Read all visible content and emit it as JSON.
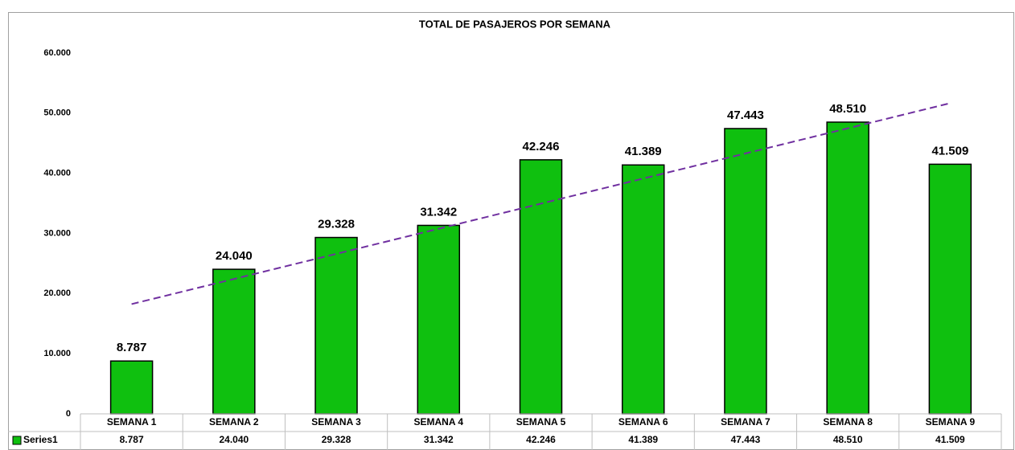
{
  "chart_data": {
    "type": "bar",
    "title": "TOTAL DE PASAJEROS POR SEMANA",
    "categories": [
      "SEMANA 1",
      "SEMANA 2",
      "SEMANA 3",
      "SEMANA 4",
      "SEMANA 5",
      "SEMANA 6",
      "SEMANA 7",
      "SEMANA 8",
      "SEMANA 9"
    ],
    "series": [
      {
        "name": "Series1",
        "color": "#0fc00f",
        "values": [
          8787,
          24040,
          29328,
          31342,
          42246,
          41389,
          47443,
          48510,
          41509
        ],
        "value_labels": [
          "8.787",
          "24.040",
          "29.328",
          "31.342",
          "42.246",
          "41.389",
          "47.443",
          "48.510",
          "41.509"
        ]
      }
    ],
    "ylim": [
      0,
      60000
    ],
    "yticks": [
      0,
      {
        "value": 10000,
        "label": "10.000"
      },
      {
        "value": 20000,
        "label": "20.000"
      },
      {
        "value": 30000,
        "label": "30.000"
      },
      {
        "value": 40000,
        "label": "40.000"
      },
      {
        "value": 50000,
        "label": "50.000"
      },
      {
        "value": 60000,
        "label": "60.000"
      }
    ],
    "grid": false,
    "trendline": {
      "type": "linear",
      "color": "#7030a0"
    },
    "data_table": true
  }
}
